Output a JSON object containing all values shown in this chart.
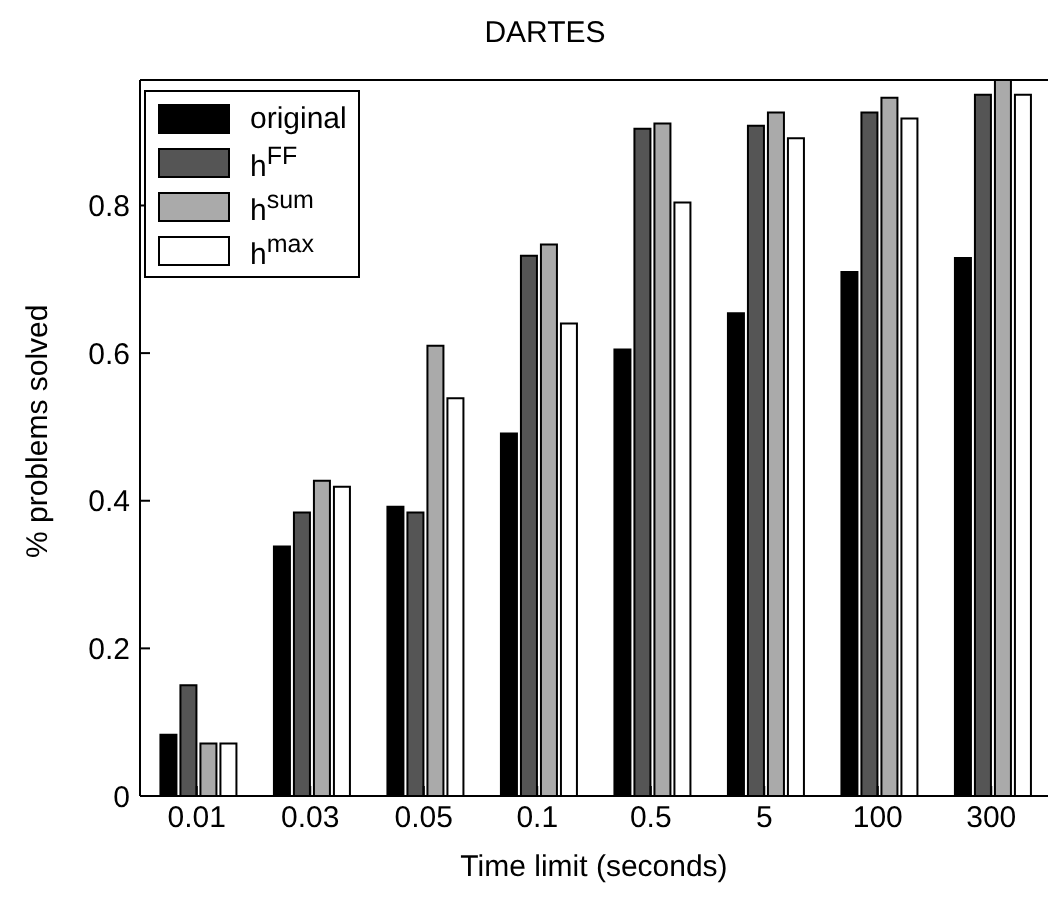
{
  "chart_data": {
    "type": "bar",
    "title": "DARTES",
    "xlabel": "Time limit (seconds)",
    "ylabel": "% problems solved",
    "categories": [
      "0.01",
      "0.03",
      "0.05",
      "0.1",
      "0.5",
      "5",
      "100",
      "300"
    ],
    "series": [
      {
        "name": "original",
        "color": "#000000",
        "values": [
          0.083,
          0.338,
          0.392,
          0.491,
          0.605,
          0.654,
          0.71,
          0.729
        ]
      },
      {
        "name": "h$^{FF}$",
        "color": "#555555",
        "values": [
          0.15,
          0.384,
          0.384,
          0.732,
          0.904,
          0.908,
          0.926,
          0.95
        ]
      },
      {
        "name": "h$^{sum}$",
        "color": "#aaaaaa",
        "values": [
          0.071,
          0.427,
          0.61,
          0.747,
          0.911,
          0.926,
          0.946,
          0.97
        ]
      },
      {
        "name": "h$^{max}$",
        "color": "#ffffff",
        "values": [
          0.071,
          0.419,
          0.539,
          0.64,
          0.804,
          0.891,
          0.918,
          0.95
        ]
      }
    ],
    "ylim": [
      0,
      0.97
    ],
    "yticks": [
      0,
      0.2,
      0.4,
      0.6,
      0.8
    ],
    "grid": false,
    "legend": "top left"
  }
}
